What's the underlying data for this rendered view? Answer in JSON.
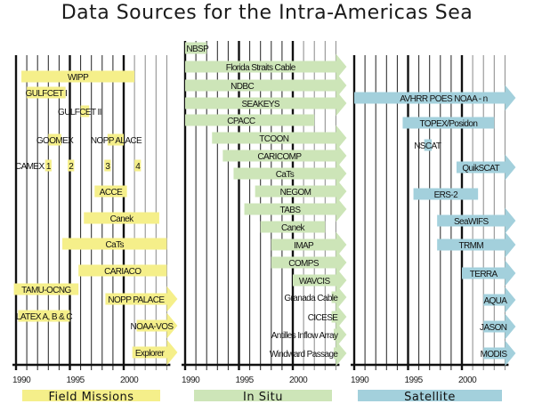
{
  "title": "Data Sources for the Intra-Americas Sea",
  "chart_data": {
    "type": "gantt",
    "title": "Data Sources for the Intra-Americas Sea",
    "x_range": [
      1990,
      2004
    ],
    "x_ticks": [
      1990,
      1995,
      2000
    ],
    "x_tick_labels": [
      "1990",
      "1995",
      "2000"
    ],
    "grid": true,
    "panels": [
      {
        "name": "Field Missions",
        "color": "#f5ef8a",
        "items": [
          {
            "label": "WIPP",
            "start": 1990.5,
            "end": 2001.0,
            "ongoing": false
          },
          {
            "label": "GULFCET I",
            "start": 1991.0,
            "end": 1994.6,
            "ongoing": false
          },
          {
            "label": "GULFCET II",
            "start": 1996.0,
            "end": 1996.8,
            "ongoing": false,
            "label_offset": "left"
          },
          {
            "label": "GOOMEX",
            "start": 1993.0,
            "end": 1994.2,
            "ongoing": false
          },
          {
            "label": "NOPP ALACE",
            "start": 1998.5,
            "end": 2000.0,
            "ongoing": false
          },
          {
            "label": "CAMEX",
            "start": null,
            "end": null,
            "ongoing": false
          },
          {
            "label": "1",
            "start": 1992.7,
            "end": 1993.3,
            "ongoing": false
          },
          {
            "label": "2",
            "start": 1994.8,
            "end": 1995.4,
            "ongoing": false
          },
          {
            "label": "3",
            "start": 1998.2,
            "end": 1998.8,
            "ongoing": false
          },
          {
            "label": "4",
            "start": 2001.0,
            "end": 2001.6,
            "ongoing": false
          },
          {
            "label": "ACCE",
            "start": 1997.3,
            "end": 2000.3,
            "ongoing": false
          },
          {
            "label": "Canek",
            "start": 1996.3,
            "end": 2003.3,
            "ongoing": false
          },
          {
            "label": "CaTs",
            "start": 1994.3,
            "end": 2004.0,
            "ongoing": false
          },
          {
            "label": "CARIACO",
            "start": 1995.8,
            "end": 2004.0,
            "ongoing": false
          },
          {
            "label": "TAMU-OCNG",
            "start": 1989.8,
            "end": 1995.8,
            "ongoing": false
          },
          {
            "label": "NOPP PALACE",
            "start": 1998.3,
            "end": 2004.0,
            "ongoing": true
          },
          {
            "label": "LATEX A, B & C",
            "start": 1990.2,
            "end": 1995.0,
            "ongoing": false
          },
          {
            "label": "NOAA-VOS",
            "start": 2001.2,
            "end": 2004.0,
            "ongoing": true
          },
          {
            "label": "Explorer",
            "start": 2000.8,
            "end": 2004.0,
            "ongoing": true
          }
        ]
      },
      {
        "name": "In Situ",
        "color": "#cde5b8",
        "items": [
          {
            "label": "NBSP",
            "start": 1990.0,
            "end": 1992.0,
            "ongoing": false
          },
          {
            "label": "Florida Straits Cable",
            "start": 1990.0,
            "end": 2004.0,
            "ongoing": true
          },
          {
            "label": "NDBC",
            "start": 1990.0,
            "end": 2004.0,
            "ongoing": true
          },
          {
            "label": "SEAKEYS",
            "start": 1990.0,
            "end": 2004.0,
            "ongoing": true
          },
          {
            "label": "CPACC",
            "start": 1990.0,
            "end": 2002.0,
            "ongoing": false
          },
          {
            "label": "TCOON",
            "start": 1992.5,
            "end": 2004.0,
            "ongoing": true
          },
          {
            "label": "CARICOMP",
            "start": 1993.5,
            "end": 2004.0,
            "ongoing": true
          },
          {
            "label": "CaTs",
            "start": 1994.5,
            "end": 2004.0,
            "ongoing": true
          },
          {
            "label": "NEGOM",
            "start": 1996.5,
            "end": 2004.0,
            "ongoing": true
          },
          {
            "label": "TABS",
            "start": 1995.5,
            "end": 2004.0,
            "ongoing": true
          },
          {
            "label": "Canek",
            "start": 1997.0,
            "end": 2003.0,
            "ongoing": false
          },
          {
            "label": "IMAP",
            "start": 1998.0,
            "end": 2004.0,
            "ongoing": true
          },
          {
            "label": "COMPS",
            "start": 1998.0,
            "end": 2004.0,
            "ongoing": true
          },
          {
            "label": "WAVCIS",
            "start": 2000.0,
            "end": 2004.0,
            "ongoing": true
          },
          {
            "label": "Granada Cable",
            "start": 2003.6,
            "end": 2004.0,
            "ongoing": true
          },
          {
            "label": "CICESE",
            "start": 2003.6,
            "end": 2004.0,
            "ongoing": true
          },
          {
            "label": "Antilles Inflow Array",
            "start": 2003.8,
            "end": 2004.0,
            "ongoing": true
          },
          {
            "label": "Windward Passage",
            "start": 2003.8,
            "end": 2004.0,
            "ongoing": true
          }
        ]
      },
      {
        "name": "Satellite",
        "color": "#a3d0dc",
        "items": [
          {
            "label": "AVHRR POES NOAA - n",
            "start": 1990.0,
            "end": 2004.0,
            "ongoing": true
          },
          {
            "label": "TOPEX/Posidon",
            "start": 1994.5,
            "end": 2003.0,
            "ongoing": false
          },
          {
            "label": "NSCAT",
            "start": 1996.5,
            "end": 1997.2,
            "ongoing": false
          },
          {
            "label": "QuikSCAT",
            "start": 1999.5,
            "end": 2004.0,
            "ongoing": true
          },
          {
            "label": "ERS-2",
            "start": 1995.5,
            "end": 2001.5,
            "ongoing": false
          },
          {
            "label": "SeaWIFS",
            "start": 1997.7,
            "end": 2004.0,
            "ongoing": true
          },
          {
            "label": "TRMM",
            "start": 1997.7,
            "end": 2004.0,
            "ongoing": true
          },
          {
            "label": "TERRA",
            "start": 2000.0,
            "end": 2004.0,
            "ongoing": true
          },
          {
            "label": "AQUA",
            "start": 2002.0,
            "end": 2004.0,
            "ongoing": true
          },
          {
            "label": "JASON",
            "start": 2002.0,
            "end": 2004.0,
            "ongoing": true
          },
          {
            "label": "MODIS",
            "start": 2002.0,
            "end": 2004.0,
            "ongoing": true
          }
        ]
      }
    ]
  }
}
